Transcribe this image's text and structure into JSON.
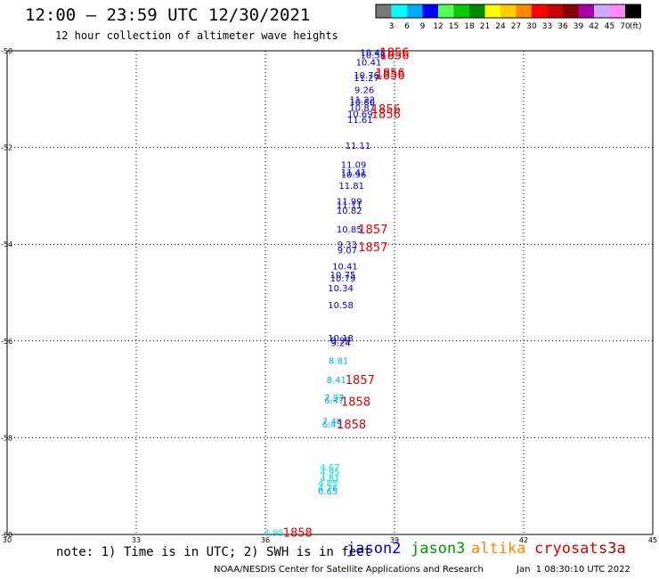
{
  "title": "12:00 – 23:59 UTC 12/30/2021",
  "subtitle": "12 hour collection of altimeter wave heights",
  "scale": {
    "labels": [
      "3",
      "6",
      "9",
      "12",
      "15",
      "18",
      "21",
      "24",
      "27",
      "30",
      "33",
      "36",
      "39",
      "42",
      "45",
      "70"
    ],
    "unit": "(ft)",
    "colors": [
      "#787878",
      "#00ffff",
      "#00aaff",
      "#0000ff",
      "#55ff55",
      "#00cc00",
      "#008800",
      "#ffff00",
      "#ffcc00",
      "#ff8800",
      "#ff0000",
      "#cc0000",
      "#880000",
      "#aa00aa",
      "#ccaaff",
      "#ff88ff",
      "#000000"
    ]
  },
  "note": "note: 1) Time is in UTC; 2) SWH is in feet",
  "satellites": [
    {
      "name": "jason2",
      "color": "#0000cc"
    },
    {
      "name": "jason3",
      "color": "#009900"
    },
    {
      "name": "altika",
      "color": "#ff8800"
    },
    {
      "name": "cryosat",
      "color": "#dd0000"
    },
    {
      "name": "s3a",
      "color": "#aa0000"
    }
  ],
  "footer": "NOAA/NESDIS Center for Satellite Applications and Research",
  "footer_time": "Jan  1 08:30:10 UTC 2022",
  "chart_data": {
    "type": "scatter",
    "xlim": [
      30,
      45
    ],
    "ylim": [
      -60,
      -50
    ],
    "x_ticks": [
      "30",
      "33",
      "36",
      "39",
      "42",
      "45"
    ],
    "y_ticks": [
      "-50",
      "-52",
      "-54",
      "-56",
      "-58",
      "-60"
    ],
    "grid": true,
    "swh_points": [
      {
        "x": 38.5,
        "y": -50.03,
        "label": "10.48",
        "color": "#0000cc"
      },
      {
        "x": 38.5,
        "y": -50.08,
        "label": "10.58",
        "color": "#0000cc"
      },
      {
        "x": 38.4,
        "y": -50.23,
        "label": "10.41",
        "color": "#0000cc"
      },
      {
        "x": 38.35,
        "y": -50.5,
        "label": "10.76",
        "color": "#0000cc"
      },
      {
        "x": 38.35,
        "y": -50.55,
        "label": "11.27",
        "color": "#0000cc"
      },
      {
        "x": 38.3,
        "y": -50.8,
        "label": "9.26",
        "color": "#0000cc"
      },
      {
        "x": 38.25,
        "y": -51.0,
        "label": "11.22",
        "color": "#0000cc"
      },
      {
        "x": 38.25,
        "y": -51.05,
        "label": "10.80",
        "color": "#0000cc"
      },
      {
        "x": 38.25,
        "y": -51.17,
        "label": "10.87",
        "color": "#0000cc"
      },
      {
        "x": 38.2,
        "y": -51.3,
        "label": "10.69",
        "color": "#0000cc"
      },
      {
        "x": 38.2,
        "y": -51.42,
        "label": "11.61",
        "color": "#0000cc"
      },
      {
        "x": 38.15,
        "y": -51.95,
        "label": "11.11",
        "color": "#0000cc"
      },
      {
        "x": 38.05,
        "y": -52.35,
        "label": "11.09",
        "color": "#0000cc"
      },
      {
        "x": 38.05,
        "y": -52.5,
        "label": "11.41",
        "color": "#0000cc"
      },
      {
        "x": 38.05,
        "y": -52.55,
        "label": "10.96",
        "color": "#0000cc"
      },
      {
        "x": 38.0,
        "y": -52.78,
        "label": "11.81",
        "color": "#0000cc"
      },
      {
        "x": 37.95,
        "y": -53.1,
        "label": "11.99",
        "color": "#0000cc"
      },
      {
        "x": 37.95,
        "y": -53.18,
        "label": "11.11",
        "color": "#0000cc"
      },
      {
        "x": 37.95,
        "y": -53.3,
        "label": "10.82",
        "color": "#0000cc"
      },
      {
        "x": 37.95,
        "y": -53.68,
        "label": "10.85",
        "color": "#0000cc"
      },
      {
        "x": 37.9,
        "y": -54.0,
        "label": "9.33",
        "color": "#0000cc"
      },
      {
        "x": 37.9,
        "y": -54.12,
        "label": "9.07",
        "color": "#0000cc"
      },
      {
        "x": 37.85,
        "y": -54.45,
        "label": "10.41",
        "color": "#0000cc"
      },
      {
        "x": 37.8,
        "y": -54.62,
        "label": "10.75",
        "color": "#0000cc"
      },
      {
        "x": 37.8,
        "y": -54.7,
        "label": "10.79",
        "color": "#0000cc"
      },
      {
        "x": 37.75,
        "y": -54.9,
        "label": "10.34",
        "color": "#0000cc"
      },
      {
        "x": 37.75,
        "y": -55.25,
        "label": "10.58",
        "color": "#0000cc"
      },
      {
        "x": 37.75,
        "y": -55.93,
        "label": "10.18",
        "color": "#0000cc"
      },
      {
        "x": 37.75,
        "y": -55.98,
        "label": "9.99",
        "color": "#0000cc"
      },
      {
        "x": 37.75,
        "y": -56.03,
        "label": "9.24",
        "color": "#0000cc"
      },
      {
        "x": 37.7,
        "y": -56.4,
        "label": "8.81",
        "color": "#00aaff"
      },
      {
        "x": 37.65,
        "y": -56.8,
        "label": "8.41",
        "color": "#00aaff"
      },
      {
        "x": 37.6,
        "y": -57.16,
        "label": "7.97",
        "color": "#00aaff"
      },
      {
        "x": 37.6,
        "y": -57.22,
        "label": "6.47",
        "color": "#00aaff"
      },
      {
        "x": 37.55,
        "y": -57.65,
        "label": "7.48",
        "color": "#00aaff"
      },
      {
        "x": 37.55,
        "y": -57.72,
        "label": "6.45",
        "color": "#00aaff"
      },
      {
        "x": 37.5,
        "y": -58.6,
        "label": "4.67",
        "color": "#00dddd"
      },
      {
        "x": 37.5,
        "y": -58.7,
        "label": "4.95",
        "color": "#00dddd"
      },
      {
        "x": 37.5,
        "y": -58.83,
        "label": "4.81",
        "color": "#00dddd"
      },
      {
        "x": 37.45,
        "y": -58.93,
        "label": "4.85",
        "color": "#00dddd"
      },
      {
        "x": 37.45,
        "y": -59.03,
        "label": "4.76",
        "color": "#00dddd"
      },
      {
        "x": 37.45,
        "y": -59.1,
        "label": "6.65",
        "color": "#00aaff"
      },
      {
        "x": 36.2,
        "y": -59.95,
        "label": "4.95",
        "color": "#00dddd"
      }
    ],
    "time_labels": [
      {
        "x": 39.0,
        "y": -50.03,
        "label": "1856",
        "color": "#dd0000"
      },
      {
        "x": 39.0,
        "y": -50.08,
        "label": "1856",
        "color": "#dd0000"
      },
      {
        "x": 38.9,
        "y": -50.45,
        "label": "1856",
        "color": "#dd0000"
      },
      {
        "x": 38.9,
        "y": -50.5,
        "label": "1856",
        "color": "#dd0000"
      },
      {
        "x": 38.8,
        "y": -51.2,
        "label": "1856",
        "color": "#dd0000"
      },
      {
        "x": 38.8,
        "y": -51.3,
        "label": "1856",
        "color": "#dd0000"
      },
      {
        "x": 38.5,
        "y": -53.68,
        "label": "1857",
        "color": "#dd0000"
      },
      {
        "x": 38.5,
        "y": -54.05,
        "label": "1857",
        "color": "#dd0000"
      },
      {
        "x": 38.2,
        "y": -56.8,
        "label": "1857",
        "color": "#dd0000"
      },
      {
        "x": 38.1,
        "y": -57.25,
        "label": "1858",
        "color": "#dd0000"
      },
      {
        "x": 38.0,
        "y": -57.72,
        "label": "1858",
        "color": "#dd0000"
      },
      {
        "x": 36.75,
        "y": -59.95,
        "label": "1858",
        "color": "#dd0000"
      }
    ]
  }
}
